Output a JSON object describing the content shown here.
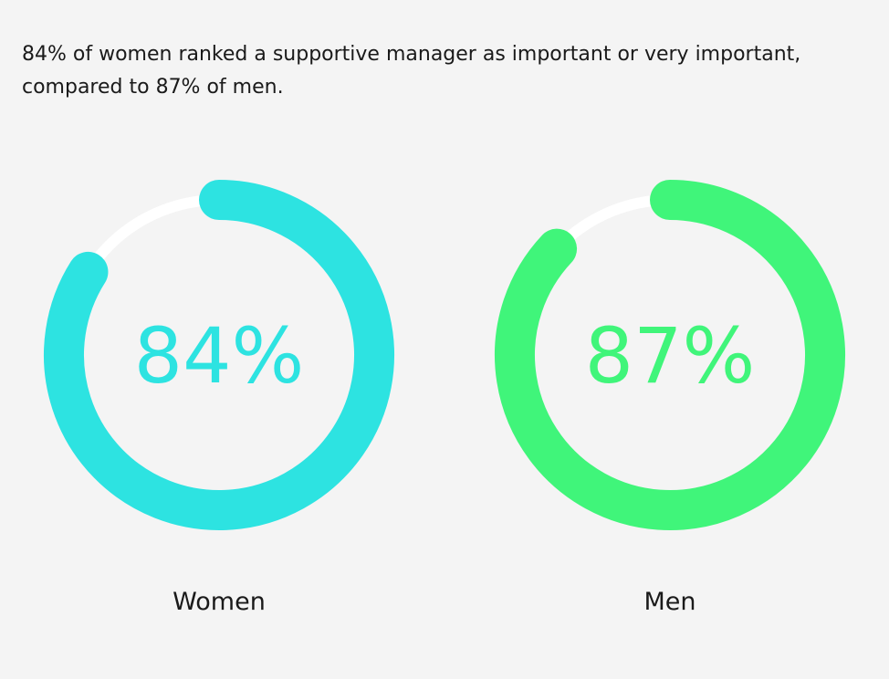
{
  "headline": "84% of women ranked a supportive manager as important or very important, compared to 87% of men.",
  "colors": {
    "background": "#f4f4f4",
    "track": "#ffffff",
    "women": "#2de3e1",
    "men": "#40f57a"
  },
  "chart_data": {
    "type": "donut",
    "unit": "%",
    "max": 100,
    "series": [
      {
        "name": "Women",
        "value": 84,
        "display": "84%",
        "color": "#2de3e1"
      },
      {
        "name": "Men",
        "value": 87,
        "display": "87%",
        "color": "#40f57a"
      }
    ]
  }
}
